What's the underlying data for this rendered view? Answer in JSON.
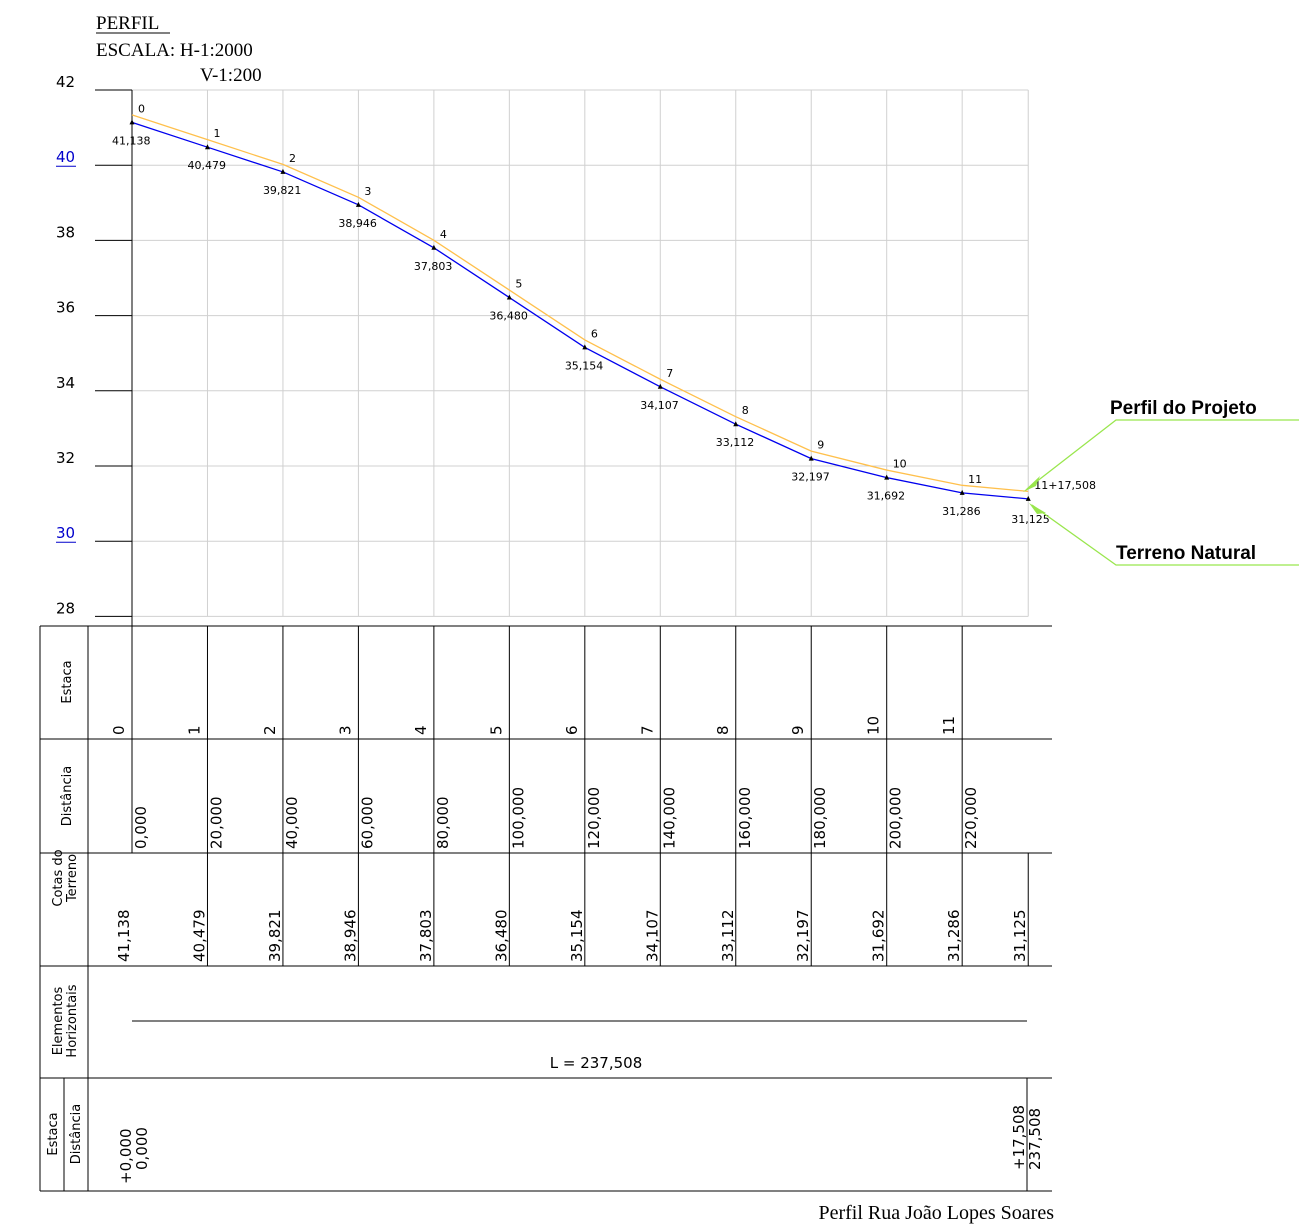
{
  "header": {
    "title": "PERFIL",
    "scale_h": "ESCALA: H-1:2000",
    "scale_v": "V-1:200"
  },
  "y_axis": {
    "labels": [
      "42",
      "40",
      "38",
      "36",
      "34",
      "32",
      "30",
      "28"
    ],
    "highlight": [
      "40",
      "30"
    ]
  },
  "profile": {
    "stations": [
      "0",
      "1",
      "2",
      "3",
      "4",
      "5",
      "6",
      "7",
      "8",
      "9",
      "10",
      "11",
      "11+17,508"
    ],
    "distances": [
      0,
      20,
      40,
      60,
      80,
      100,
      120,
      140,
      160,
      180,
      200,
      220,
      237.508
    ],
    "terrain": [
      41.138,
      40.479,
      39.821,
      38.946,
      37.803,
      36.48,
      35.154,
      34.107,
      33.112,
      32.197,
      31.692,
      31.286,
      31.125
    ],
    "terrain_labels": [
      "41,138",
      "40,479",
      "39,821",
      "38,946",
      "37,803",
      "36,480",
      "35,154",
      "34,107",
      "33,112",
      "32,197",
      "31,692",
      "31,286",
      "31,125"
    ],
    "project_offset_m": 0.2
  },
  "callouts": {
    "project": "Perfil do Projeto",
    "terrain": "Terreno Natural"
  },
  "table": {
    "row_headers": {
      "estaca": "Estaca",
      "distancia": "Distância",
      "cotas_1": "Cotas do",
      "cotas_2": "Terreno",
      "elem_1": "Elementos",
      "elem_2": "Horizontais",
      "est2_1": "Estaca",
      "est2_2": "Distância"
    },
    "estacas": [
      "0",
      "1",
      "2",
      "3",
      "4",
      "5",
      "6",
      "7",
      "8",
      "9",
      "10",
      "11"
    ],
    "distancias": [
      "0,000",
      "20,000",
      "40,000",
      "60,000",
      "80,000",
      "100,000",
      "120,000",
      "140,000",
      "160,000",
      "180,000",
      "200,000",
      "220,000"
    ],
    "cotas": [
      "41,138",
      "40,479",
      "39,821",
      "38,946",
      "37,803",
      "36,480",
      "35,154",
      "34,107",
      "33,112",
      "32,197",
      "31,692",
      "31,286",
      "31,125"
    ],
    "horizontal_length": "L = 237,508",
    "start_station": "+0,000",
    "start_distance": "0,000",
    "end_station": "+17,508",
    "end_distance": "237,508"
  },
  "footer": "Perfil Rua João Lopes Soares",
  "colors": {
    "terrain": "#0000ee",
    "project": "#ffc04c",
    "callout": "#99e64d",
    "highlight_label": "#0000cc",
    "grid": "#d0d0d0"
  }
}
